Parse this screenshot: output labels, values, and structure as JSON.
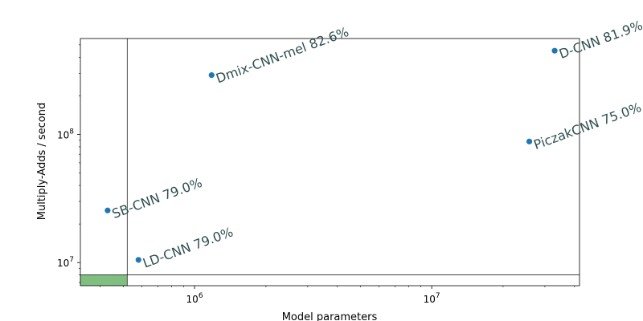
{
  "chart_data": {
    "type": "scatter",
    "xscale": "log",
    "yscale": "log",
    "xlabel": "Model parameters",
    "ylabel": "Multiply-Adds / second",
    "xlim": [
      330000,
      42000000
    ],
    "ylim": [
      6600000,
      560000000
    ],
    "x_ticks": [
      {
        "value": 1000000,
        "base": "10",
        "exp": "6"
      },
      {
        "value": 10000000,
        "base": "10",
        "exp": "7"
      }
    ],
    "y_ticks": [
      {
        "value": 10000000,
        "base": "10",
        "exp": "7"
      },
      {
        "value": 100000000,
        "base": "10",
        "exp": "8"
      }
    ],
    "points": [
      {
        "name": "SB-CNN",
        "accuracy": "79.0%",
        "label": "SB-CNN  79.0%",
        "params": 430000,
        "madds": 25500000
      },
      {
        "name": "LD-CNN",
        "accuracy": "79.0%",
        "label": "LD-CNN  79.0%",
        "params": 580000,
        "madds": 10500000
      },
      {
        "name": "Dmix-CNN-mel",
        "accuracy": "82.6%",
        "label": "Dmix-CNN-mel  82.6%",
        "params": 1180000,
        "madds": 290000000
      },
      {
        "name": "PiczakCNN",
        "accuracy": "75.0%",
        "label": "PiczakCNN  75.0%",
        "params": 25800000,
        "madds": 88000000
      },
      {
        "name": "D-CNN",
        "accuracy": "81.9%",
        "label": "D-CNN  81.9%",
        "params": 33000000,
        "madds": 450000000
      }
    ],
    "reference_lines": {
      "x": 520000,
      "y": 8000000
    },
    "feasible_region": {
      "x_max": 520000,
      "y_max": 8000000
    },
    "colors": {
      "point": "#1f77b4",
      "annotation": "#2f4f4f",
      "region": "#7fbf7f",
      "frame": "#000000"
    }
  }
}
